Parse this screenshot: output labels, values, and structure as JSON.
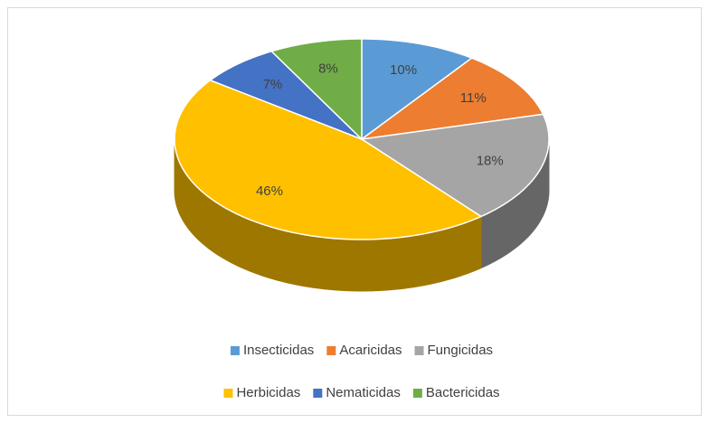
{
  "chart_data": {
    "type": "pie",
    "categories": [
      "Insecticidas",
      "Acaricidas",
      "Fungicidas",
      "Herbicidas",
      "Nematicidas",
      "Bactericidas"
    ],
    "values": [
      10,
      11,
      18,
      46,
      7,
      8
    ],
    "value_labels": [
      "10%",
      "11%",
      "18%",
      "46%",
      "7%",
      "8%"
    ],
    "colors": [
      "#5b9bd5",
      "#ed7d31",
      "#a5a5a5",
      "#ffc000",
      "#4472c4",
      "#70ad47"
    ],
    "legend": "bottom"
  }
}
